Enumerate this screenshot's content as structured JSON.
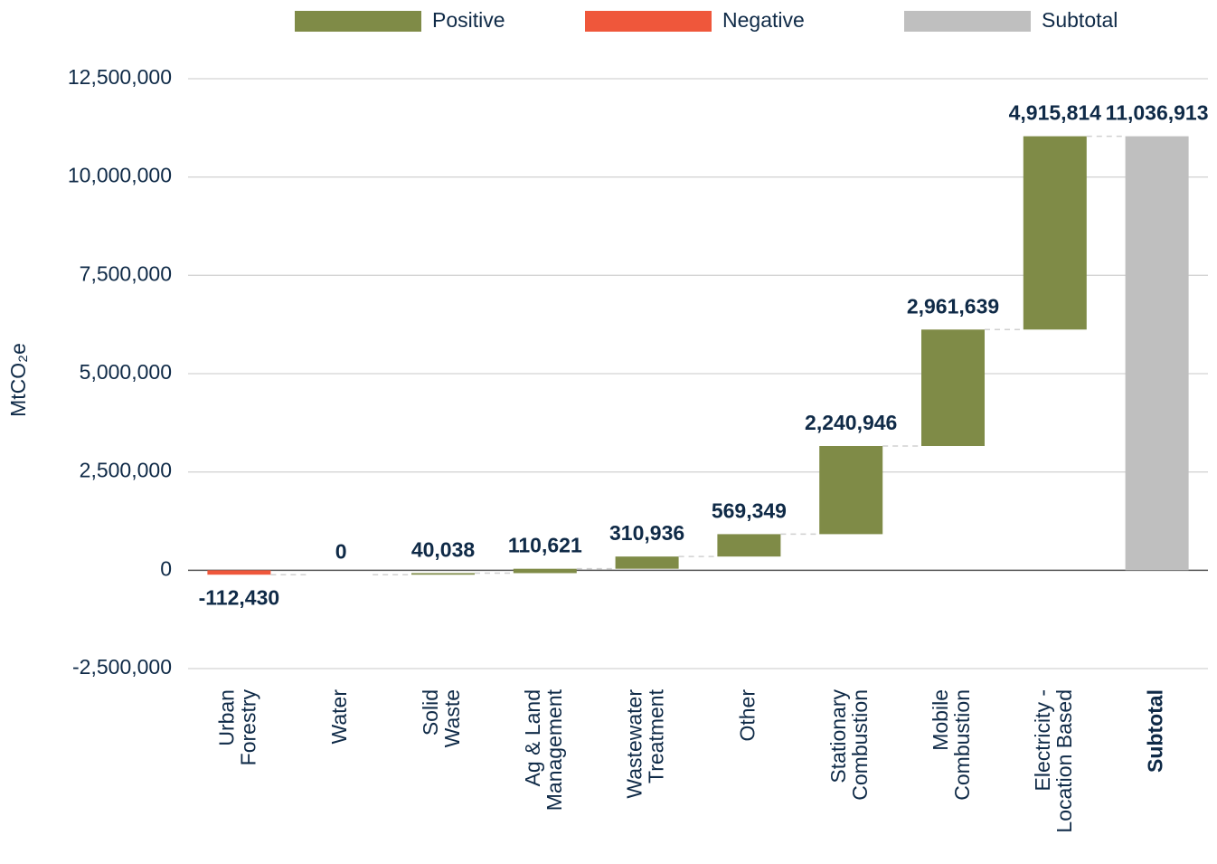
{
  "chart_data": {
    "type": "waterfall",
    "y_label": "MtCO₂e",
    "categories": [
      "Urban\nForestry",
      "Water",
      "Solid\nWaste",
      "Ag & Land\nManagement",
      "Wastewater\nTreatment",
      "Other",
      "Stationary\nCombustion",
      "Mobile\nCombustion",
      "Electricity -\nLocation Based",
      "Subtotal"
    ],
    "values": [
      -112430,
      0,
      40038,
      110621,
      310936,
      569349,
      2240946,
      2961639,
      4915814,
      11036913
    ],
    "value_labels": [
      "-112,430",
      "0",
      "40,038",
      "110,621",
      "310,936",
      "569,349",
      "2,240,946",
      "2,961,639",
      "4,915,814",
      "11,036,913"
    ],
    "bar_kinds": [
      "step",
      "step",
      "step",
      "step",
      "step",
      "step",
      "step",
      "step",
      "step",
      "total"
    ],
    "legend": [
      {
        "name": "Positive",
        "color": "#7f8b47"
      },
      {
        "name": "Negative",
        "color": "#ef573b"
      },
      {
        "name": "Subtotal",
        "color": "#bfbfbf"
      }
    ],
    "ylim": [
      -2500000,
      12500000
    ],
    "yticks": [
      {
        "value": -2500000,
        "label": "-2,500,000"
      },
      0,
      {
        "value": 2500000,
        "label": "2,500,000"
      },
      {
        "value": 5000000,
        "label": "5,000,000"
      },
      {
        "value": 7500000,
        "label": "7,500,000"
      },
      {
        "value": 10000000,
        "label": "10,000,000"
      },
      {
        "value": 12500000,
        "label": "12,500,000"
      }
    ],
    "grid": true
  }
}
